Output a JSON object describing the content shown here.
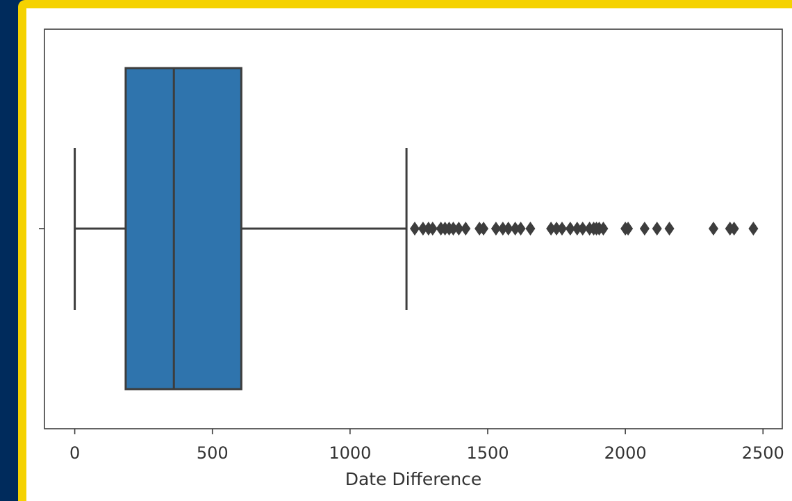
{
  "chart_data": {
    "type": "box",
    "orientation": "horizontal",
    "xlabel": "Date Difference",
    "ylabel": "",
    "xlim": [
      -110,
      2570
    ],
    "xticks": [
      0,
      500,
      1000,
      1500,
      2000,
      2500
    ],
    "xtick_labels": [
      "0",
      "500",
      "1000",
      "1500",
      "2000",
      "2500"
    ],
    "grid": false,
    "box": {
      "whisker_low": 0,
      "q1": 185,
      "median": 360,
      "q3": 605,
      "whisker_high": 1205
    },
    "outliers": [
      1235,
      1265,
      1285,
      1300,
      1330,
      1345,
      1360,
      1375,
      1395,
      1420,
      1470,
      1485,
      1530,
      1555,
      1575,
      1600,
      1620,
      1655,
      1730,
      1750,
      1770,
      1800,
      1825,
      1845,
      1870,
      1885,
      1895,
      1905,
      1920,
      2000,
      2010,
      2070,
      2115,
      2160,
      2320,
      2380,
      2395,
      2465
    ],
    "colors": {
      "box_fill": "#2f74ad",
      "lines": "#3d3d3d",
      "outliers": "#3d3d3d"
    }
  }
}
